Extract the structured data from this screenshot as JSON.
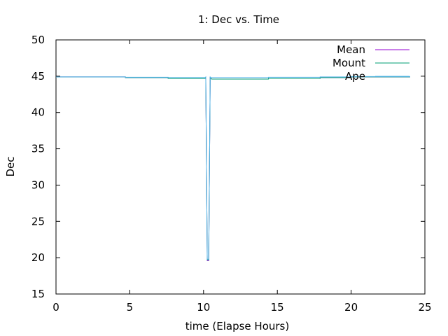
{
  "chart_data": {
    "type": "line",
    "title": "1: Dec vs. Time",
    "xlabel": "time (Elapse Hours)",
    "ylabel": "Dec",
    "xlim": [
      0,
      25
    ],
    "ylim": [
      15,
      50
    ],
    "xticks": [
      0,
      5,
      10,
      15,
      20,
      25
    ],
    "yticks": [
      15,
      20,
      25,
      30,
      35,
      40,
      45,
      50
    ],
    "grid": false,
    "legend_position": "top-right",
    "series": [
      {
        "name": "Mean",
        "color": "#9400d3",
        "x": [
          0,
          4.7,
          4.7,
          7.6,
          7.6,
          10.1,
          10.1,
          10.15,
          10.2,
          10.25,
          10.3,
          10.35,
          10.4,
          10.45,
          10.5,
          10.55,
          10.6,
          10.65,
          10.7,
          14.4,
          14.4,
          17.9,
          17.9,
          20,
          20,
          24
        ],
        "y": [
          44.9,
          44.9,
          44.8,
          44.8,
          44.7,
          44.7,
          44.7,
          44.8,
          32.3,
          19.6,
          19.6,
          19.6,
          32.3,
          44.8,
          44.7,
          44.6,
          44.6,
          44.6,
          44.6,
          44.6,
          44.7,
          44.7,
          44.8,
          44.8,
          44.9,
          44.9
        ]
      },
      {
        "name": "Mount",
        "color": "#009e73",
        "x": [
          0,
          4.7,
          4.7,
          7.6,
          7.6,
          10.1,
          10.1,
          10.15,
          10.2,
          10.25,
          10.3,
          10.35,
          10.4,
          10.45,
          10.5,
          10.55,
          10.6,
          10.65,
          10.7,
          14.4,
          14.4,
          17.9,
          17.9,
          20,
          20,
          24
        ],
        "y": [
          44.9,
          44.9,
          44.8,
          44.8,
          44.7,
          44.7,
          44.7,
          44.8,
          32.3,
          19.7,
          19.7,
          19.7,
          32.3,
          44.8,
          44.7,
          44.6,
          44.6,
          44.6,
          44.6,
          44.6,
          44.7,
          44.7,
          44.8,
          44.8,
          44.9,
          44.9
        ]
      },
      {
        "name": "Ape",
        "color": "#56b4e9",
        "x": [
          0,
          4.7,
          4.7,
          7.6,
          7.6,
          10.1,
          10.1,
          10.15,
          10.2,
          10.25,
          10.3,
          10.35,
          10.4,
          10.45,
          10.5,
          10.55,
          10.6,
          10.65,
          10.7,
          14.4,
          14.4,
          17.9,
          17.9,
          20,
          20,
          24
        ],
        "y": [
          44.9,
          44.9,
          44.85,
          44.85,
          44.8,
          44.8,
          44.8,
          44.9,
          32.3,
          19.8,
          19.8,
          19.8,
          32.3,
          44.9,
          44.8,
          44.8,
          44.8,
          44.8,
          44.8,
          44.8,
          44.85,
          44.85,
          44.9,
          44.9,
          44.95,
          44.95
        ]
      }
    ]
  }
}
